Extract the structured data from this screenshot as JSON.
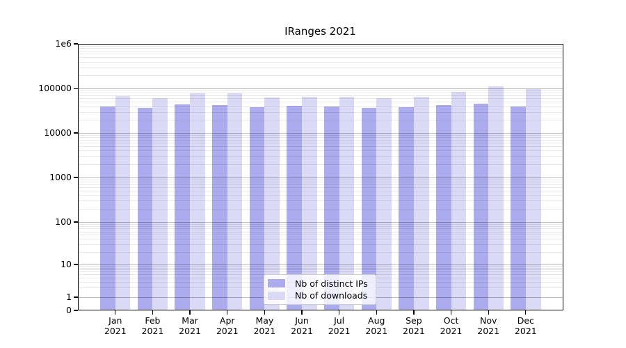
{
  "chart_data": {
    "type": "bar",
    "title": "IRanges 2021",
    "categories": [
      "Jan 2021",
      "Feb 2021",
      "Mar 2021",
      "Apr 2021",
      "May 2021",
      "Jun 2021",
      "Jul 2021",
      "Aug 2021",
      "Sep 2021",
      "Oct 2021",
      "Nov 2021",
      "Dec 2021"
    ],
    "series": [
      {
        "name": "Nb of distinct IPs",
        "color": "#ababee",
        "values": [
          39000,
          36500,
          44500,
          43000,
          38500,
          40500,
          39000,
          36500,
          38500,
          43000,
          46000,
          39000
        ]
      },
      {
        "name": "Nb of downloads",
        "color": "#dadaf6",
        "values": [
          68000,
          60000,
          77500,
          78000,
          62500,
          66000,
          64500,
          61000,
          64500,
          85000,
          112500,
          97500
        ]
      }
    ],
    "y_axis": {
      "scale": "symlog",
      "tick_labels": [
        "1e6",
        "100000",
        "10000",
        "1000",
        "100",
        "10",
        "1",
        "0"
      ],
      "ylim": [
        0,
        1000000
      ]
    },
    "x_axis": {
      "tick_labels": [
        "Jan\n2021",
        "Feb\n2021",
        "Mar\n2021",
        "Apr\n2021",
        "May\n2021",
        "Jun\n2021",
        "Jul\n2021",
        "Aug\n2021",
        "Sep\n2021",
        "Oct\n2021",
        "Nov\n2021",
        "Dec\n2021"
      ]
    },
    "legend": {
      "position": "lower center",
      "entries": [
        "Nb of distinct IPs",
        "Nb of downloads"
      ]
    },
    "grid": "horizontal log major+minor"
  }
}
